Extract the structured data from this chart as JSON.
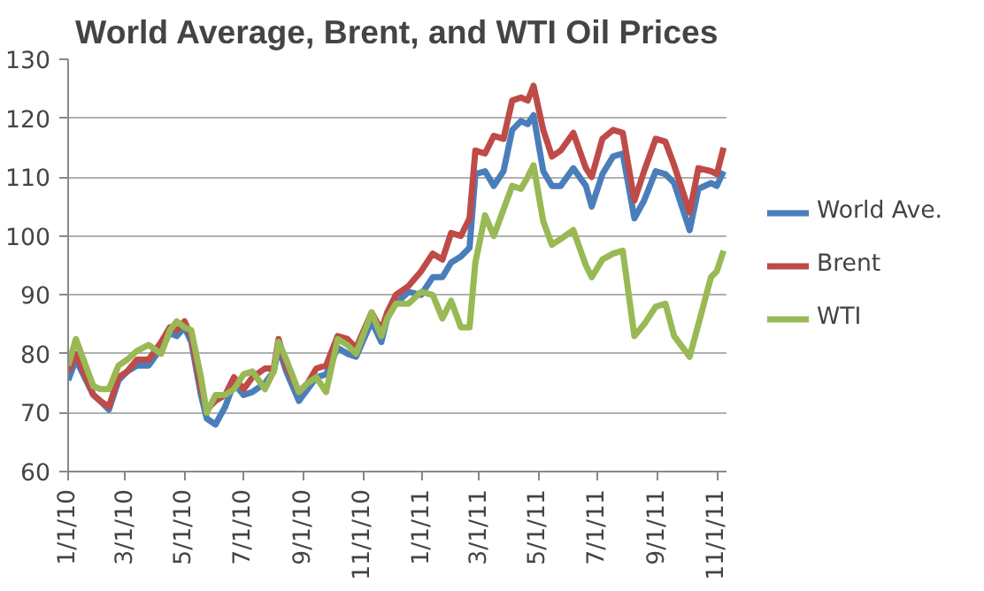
{
  "chart_data": {
    "type": "line",
    "title": "World Average, Brent, and WTI Oil Prices",
    "x": [
      "2010-01-01",
      "2010-01-09",
      "2010-01-27",
      "2010-02-03",
      "2010-02-12",
      "2010-02-22",
      "2010-03-03",
      "2010-03-13",
      "2010-03-25",
      "2010-04-07",
      "2010-04-16",
      "2010-04-23",
      "2010-05-01",
      "2010-05-08",
      "2010-05-18",
      "2010-05-24",
      "2010-06-02",
      "2010-06-12",
      "2010-06-21",
      "2010-07-01",
      "2010-07-10",
      "2010-07-23",
      "2010-08-01",
      "2010-08-06",
      "2010-08-14",
      "2010-08-27",
      "2010-09-05",
      "2010-09-14",
      "2010-09-24",
      "2010-10-06",
      "2010-10-16",
      "2010-10-25",
      "2010-11-10",
      "2010-11-20",
      "2010-11-26",
      "2010-12-05",
      "2010-12-18",
      "2010-12-31",
      "2011-01-12",
      "2011-01-22",
      "2011-01-31",
      "2011-02-10",
      "2011-02-19",
      "2011-02-25",
      "2011-03-07",
      "2011-03-16",
      "2011-03-26",
      "2011-04-04",
      "2011-04-13",
      "2011-04-20",
      "2011-04-26",
      "2011-05-06",
      "2011-05-15",
      "2011-05-24",
      "2011-06-06",
      "2011-06-19",
      "2011-06-25",
      "2011-07-06",
      "2011-07-17",
      "2011-07-27",
      "2011-08-08",
      "2011-08-18",
      "2011-08-30",
      "2011-09-09",
      "2011-09-18",
      "2011-10-04",
      "2011-10-13",
      "2011-10-26",
      "2011-11-01",
      "2011-11-08"
    ],
    "series": [
      {
        "name": "World Ave.",
        "color": "#4a7ebb",
        "values": [
          75.5,
          79,
          73,
          72,
          70.5,
          75.5,
          77,
          78,
          78,
          81,
          83.5,
          83,
          84.5,
          82,
          73,
          69,
          68,
          71,
          75,
          73,
          73.5,
          75,
          77,
          81,
          77,
          72,
          74,
          76,
          76.5,
          81,
          80,
          79.5,
          85.5,
          82,
          86,
          88.5,
          90.5,
          90,
          93,
          93,
          95.5,
          96.5,
          98,
          110.5,
          111,
          108.5,
          111,
          118,
          119.5,
          119,
          120.5,
          111,
          108.5,
          108.5,
          111.5,
          108.5,
          105,
          110.5,
          113.5,
          114,
          103,
          106,
          111,
          110.5,
          109,
          101,
          108,
          109,
          108.5,
          111
        ]
      },
      {
        "name": "Brent",
        "color": "#be4b48",
        "values": [
          77,
          80,
          73,
          72,
          71,
          76,
          77,
          79,
          79,
          82,
          84.5,
          84,
          85.5,
          83,
          74,
          70.5,
          72,
          73,
          76,
          74,
          76,
          77.5,
          77.5,
          82.5,
          78,
          73.5,
          75,
          77.5,
          78,
          83,
          82.5,
          81,
          87,
          84,
          87,
          90,
          91.5,
          94,
          97,
          96,
          100.5,
          100,
          103,
          114.5,
          114,
          117,
          116.5,
          123,
          123.5,
          123,
          125.5,
          118,
          113.5,
          114.5,
          117.5,
          111.5,
          110,
          116.5,
          118,
          117.5,
          106,
          111,
          116.5,
          116,
          112,
          104,
          111.5,
          111,
          110.5,
          115
        ]
      },
      {
        "name": "WTI",
        "color": "#98b954",
        "values": [
          78,
          82.5,
          74.5,
          74,
          74,
          78,
          79,
          80.5,
          81.5,
          80,
          84,
          85.5,
          84.5,
          84,
          76,
          70,
          73,
          73,
          74,
          76.5,
          77,
          74,
          77,
          82,
          79,
          73.5,
          75,
          76,
          73.5,
          82.5,
          81.5,
          80,
          87,
          83,
          86,
          88.5,
          88.5,
          90.5,
          90,
          86,
          89,
          84.5,
          84.5,
          95.5,
          103.5,
          100,
          104.5,
          108.5,
          108,
          110,
          112,
          102.5,
          98.5,
          99.5,
          101,
          95,
          93,
          96,
          97,
          97.5,
          83,
          85,
          88,
          88.5,
          83,
          79.5,
          85,
          93,
          94,
          97.5
        ]
      }
    ],
    "xlim": [
      "2010-01-01",
      "2011-11-11"
    ],
    "xticks": [
      {
        "value": "2010-01-01",
        "label": "1/1/10"
      },
      {
        "value": "2010-03-01",
        "label": "3/1/10"
      },
      {
        "value": "2010-05-01",
        "label": "5/1/10"
      },
      {
        "value": "2010-07-01",
        "label": "7/1/10"
      },
      {
        "value": "2010-09-01",
        "label": "9/1/10"
      },
      {
        "value": "2010-11-01",
        "label": "11/1/10"
      },
      {
        "value": "2011-01-01",
        "label": "1/1/11"
      },
      {
        "value": "2011-03-01",
        "label": "3/1/11"
      },
      {
        "value": "2011-05-01",
        "label": "5/1/11"
      },
      {
        "value": "2011-07-01",
        "label": "7/1/11"
      },
      {
        "value": "2011-09-01",
        "label": "9/1/11"
      },
      {
        "value": "2011-11-01",
        "label": "11/1/11"
      }
    ],
    "ylim": [
      60,
      130
    ],
    "yticks": [
      60,
      70,
      80,
      90,
      100,
      110,
      120,
      130
    ],
    "grid": "y",
    "legend": "right",
    "marker": "none",
    "line_style": "solid"
  }
}
